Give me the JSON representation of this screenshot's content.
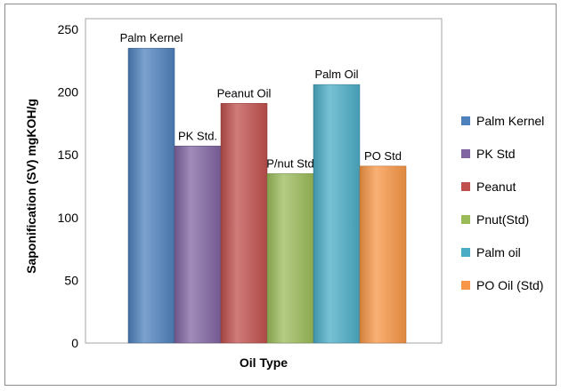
{
  "chart_data": {
    "type": "bar",
    "title": "",
    "xlabel": "Oil Type",
    "ylabel": "Saponification (SV) mgKOH/g",
    "ylim": [
      0,
      250
    ],
    "yticks": [
      0,
      50,
      100,
      150,
      200,
      250
    ],
    "grid": false,
    "legend_position": "right",
    "categories": [
      "Palm Kernel",
      "PK Std.",
      "Peanut Oil",
      "P/nut Std",
      "Palm Oil",
      "PO Std"
    ],
    "series": [
      {
        "name": "Palm Kernel",
        "value": 235,
        "color": "#4f81bd"
      },
      {
        "name": "PK Std",
        "value": 157,
        "color": "#8064a2"
      },
      {
        "name": "Peanut",
        "value": 191,
        "color": "#c0504d"
      },
      {
        "name": "Pnut(Std)",
        "value": 135,
        "color": "#9bbb59"
      },
      {
        "name": "Palm oil",
        "value": 206,
        "color": "#4bacc6"
      },
      {
        "name": "PO Oil (Std)",
        "value": 141,
        "color": "#f79646"
      }
    ]
  }
}
